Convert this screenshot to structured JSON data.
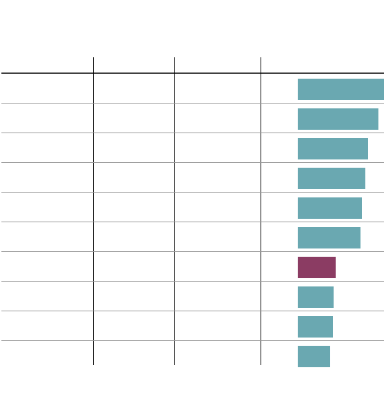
{
  "chart_data": {
    "type": "bar",
    "orientation": "horizontal",
    "values": [
      125,
      117,
      102,
      98,
      93,
      91,
      55,
      52,
      51,
      47
    ],
    "colors": [
      "#6aa8b1",
      "#6aa8b1",
      "#6aa8b1",
      "#6aa8b1",
      "#6aa8b1",
      "#6aa8b1",
      "#8b3c63",
      "#6aa8b1",
      "#6aa8b1",
      "#6aa8b1"
    ]
  }
}
